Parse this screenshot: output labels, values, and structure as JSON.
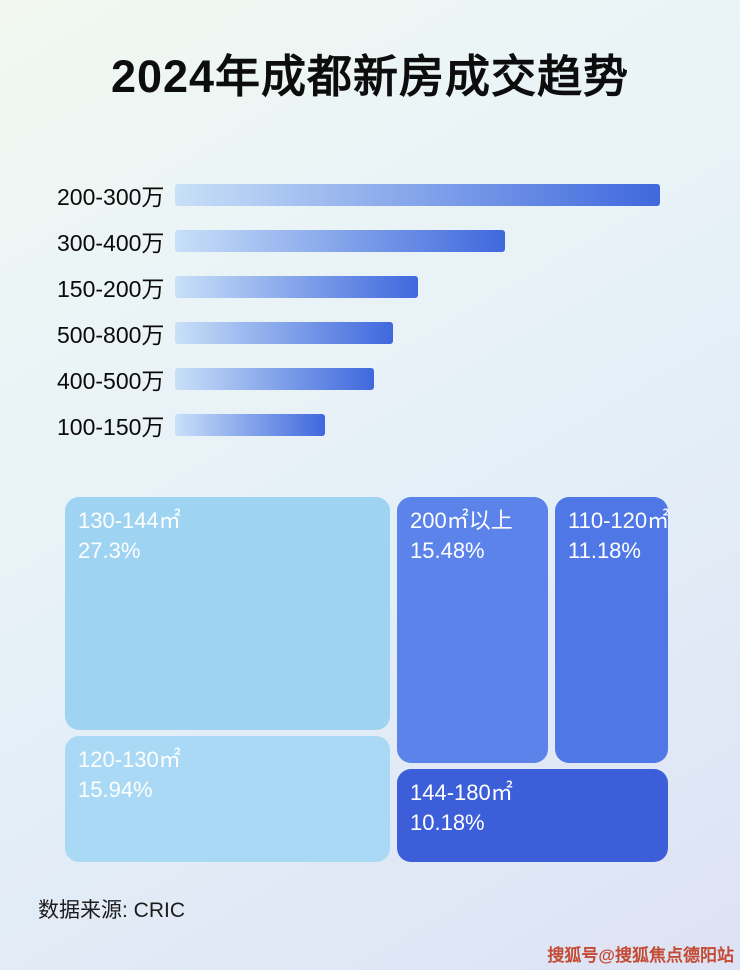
{
  "page": {
    "title": "2024年成都新房成交趋势",
    "source_label": "数据来源: CRIC",
    "watermark": "搜狐号@搜狐焦点德阳站"
  },
  "chart_data": [
    {
      "type": "bar",
      "orientation": "horizontal",
      "title": "2024年成都新房成交趋势",
      "categories": [
        "200-300万",
        "300-400万",
        "150-200万",
        "500-800万",
        "400-500万",
        "100-150万"
      ],
      "values": [
        100,
        68,
        50,
        45,
        41,
        31
      ],
      "xlabel": "",
      "ylabel": "",
      "xlim": [
        0,
        100
      ],
      "grid": false,
      "legend": false,
      "bar_colors": [
        "#c9e0f8",
        "#3f68dd"
      ]
    },
    {
      "type": "treemap",
      "blocks": [
        {
          "label": "130-144㎡",
          "percent": "27.3%",
          "value": 27.3,
          "color": "#9ed3f2"
        },
        {
          "label": "120-130㎡",
          "percent": "15.94%",
          "value": 15.94,
          "color": "#a9d9f4"
        },
        {
          "label": "200㎡以上",
          "percent": "15.48%",
          "value": 15.48,
          "color": "#5b83e9"
        },
        {
          "label": "110-120㎡",
          "percent": "11.18%",
          "value": 11.18,
          "color": "#5077e6"
        },
        {
          "label": "144-180㎡",
          "percent": "10.18%",
          "value": 10.18,
          "color": "#3c5ed9"
        }
      ]
    }
  ]
}
